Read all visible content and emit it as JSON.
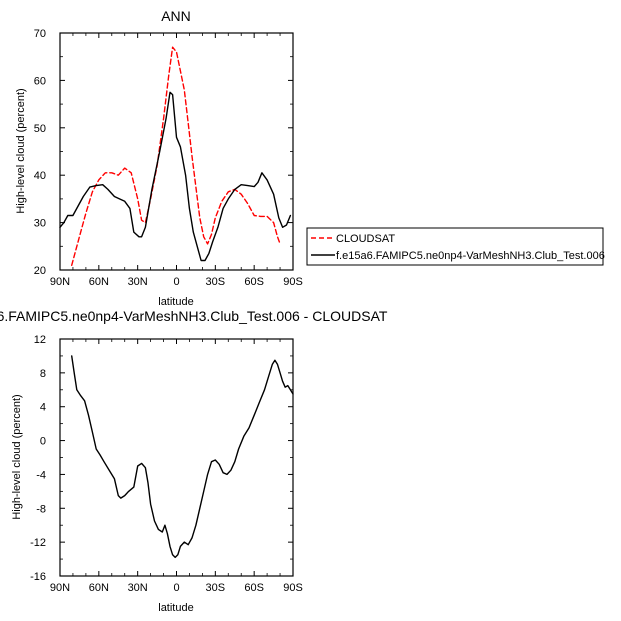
{
  "chart_data": [
    {
      "type": "line",
      "title": "ANN",
      "xlabel": "latitude",
      "ylabel": "High-level cloud (percent)",
      "xlim": [
        90,
        -90
      ],
      "ylim": [
        20,
        70
      ],
      "x_ticks": [
        90,
        60,
        30,
        0,
        -30,
        -60,
        -90
      ],
      "x_tick_labels": [
        "90N",
        "60N",
        "30N",
        "0",
        "30S",
        "60S",
        "90S"
      ],
      "y_ticks": [
        20,
        30,
        40,
        50,
        60,
        70
      ],
      "y_tick_labels": [
        "20",
        "30",
        "40",
        "50",
        "60",
        "70"
      ],
      "legend_position": "right of plot",
      "series": [
        {
          "name": "CLOUDSAT",
          "color": "#ff0000",
          "dash": "dashed",
          "points": [
            [
              81,
              21
            ],
            [
              75,
              27
            ],
            [
              70,
              32
            ],
            [
              65,
              36.5
            ],
            [
              60,
              39
            ],
            [
              55,
              40.5
            ],
            [
              50,
              40.5
            ],
            [
              45,
              40
            ],
            [
              40,
              41.5
            ],
            [
              35,
              40.5
            ],
            [
              30,
              35
            ],
            [
              27,
              30.5
            ],
            [
              24,
              30
            ],
            [
              20,
              35
            ],
            [
              15,
              42
            ],
            [
              10,
              52
            ],
            [
              6,
              61
            ],
            [
              3,
              67
            ],
            [
              0,
              66
            ],
            [
              -3,
              62
            ],
            [
              -6,
              58
            ],
            [
              -9,
              51
            ],
            [
              -12,
              44
            ],
            [
              -15,
              37.5
            ],
            [
              -18,
              31
            ],
            [
              -21,
              27
            ],
            [
              -24,
              25.5
            ],
            [
              -27,
              27.5
            ],
            [
              -30,
              31
            ],
            [
              -35,
              34.5
            ],
            [
              -40,
              36.5
            ],
            [
              -45,
              37
            ],
            [
              -50,
              36
            ],
            [
              -55,
              34
            ],
            [
              -60,
              31.5
            ],
            [
              -65,
              31.3
            ],
            [
              -70,
              31.3
            ],
            [
              -75,
              30
            ],
            [
              -78,
              27
            ],
            [
              -80,
              25.5
            ]
          ]
        },
        {
          "name": "f.e15a6.FAMIPC5.ne0np4-VarMeshNH3.Club_Test.006",
          "color": "#000000",
          "dash": "solid",
          "points": [
            [
              90,
              29
            ],
            [
              87,
              30
            ],
            [
              84,
              31.5
            ],
            [
              80,
              31.5
            ],
            [
              76,
              33.5
            ],
            [
              72,
              35.5
            ],
            [
              67,
              37.5
            ],
            [
              62,
              37.8
            ],
            [
              57,
              38
            ],
            [
              53,
              37
            ],
            [
              48,
              35.5
            ],
            [
              44,
              35
            ],
            [
              40,
              34.5
            ],
            [
              36,
              33
            ],
            [
              33,
              28
            ],
            [
              29,
              27
            ],
            [
              27,
              27
            ],
            [
              24,
              29
            ],
            [
              19,
              37
            ],
            [
              13,
              45
            ],
            [
              8,
              52
            ],
            [
              5,
              57.5
            ],
            [
              3,
              57
            ],
            [
              2,
              54
            ],
            [
              0,
              48
            ],
            [
              -3,
              46
            ],
            [
              -7,
              40
            ],
            [
              -10,
              33
            ],
            [
              -13,
              28
            ],
            [
              -16,
              25
            ],
            [
              -19,
              22
            ],
            [
              -22,
              22
            ],
            [
              -25,
              23.5
            ],
            [
              -28,
              26
            ],
            [
              -32,
              29
            ],
            [
              -36,
              33
            ],
            [
              -40,
              35
            ],
            [
              -45,
              37
            ],
            [
              -50,
              38
            ],
            [
              -55,
              37.8
            ],
            [
              -60,
              37.6
            ],
            [
              -63,
              38.5
            ],
            [
              -66,
              40.5
            ],
            [
              -70,
              39
            ],
            [
              -75,
              36
            ],
            [
              -79,
              31
            ],
            [
              -82,
              29
            ],
            [
              -85,
              29.5
            ],
            [
              -88,
              31.5
            ]
          ]
        }
      ]
    },
    {
      "type": "line",
      "title": "6.FAMIPC5.ne0np4-VarMeshNH3.Club_Test.006 - CLOUDSAT",
      "xlabel": "latitude",
      "ylabel": "High-level cloud (percent)",
      "xlim": [
        90,
        -90
      ],
      "ylim": [
        -16,
        12
      ],
      "x_ticks": [
        90,
        60,
        30,
        0,
        -30,
        -60,
        -90
      ],
      "x_tick_labels": [
        "90N",
        "60N",
        "30N",
        "0",
        "30S",
        "60S",
        "90S"
      ],
      "y_ticks": [
        -16,
        -12,
        -8,
        -4,
        0,
        4,
        8,
        12
      ],
      "y_tick_labels": [
        "-16",
        "-12",
        "-8",
        "-4",
        "0",
        "4",
        "8",
        "12"
      ],
      "series": [
        {
          "name": "",
          "color": "#000000",
          "dash": "solid",
          "points": [
            [
              81,
              10
            ],
            [
              79,
              8
            ],
            [
              77,
              6
            ],
            [
              74,
              5.3
            ],
            [
              71,
              4.7
            ],
            [
              68,
              3
            ],
            [
              65,
              1
            ],
            [
              62,
              -1
            ],
            [
              59,
              -1.7
            ],
            [
              56,
              -2.5
            ],
            [
              52,
              -3.5
            ],
            [
              48,
              -4.5
            ],
            [
              45,
              -6.5
            ],
            [
              43,
              -6.8
            ],
            [
              40,
              -6.5
            ],
            [
              37,
              -6
            ],
            [
              33,
              -5.5
            ],
            [
              30,
              -3
            ],
            [
              27,
              -2.7
            ],
            [
              24,
              -3.2
            ],
            [
              22,
              -5
            ],
            [
              20,
              -7.5
            ],
            [
              17,
              -9.5
            ],
            [
              14,
              -10.5
            ],
            [
              11,
              -10.8
            ],
            [
              9,
              -10
            ],
            [
              7,
              -11
            ],
            [
              5,
              -12.5
            ],
            [
              3,
              -13.5
            ],
            [
              1,
              -13.8
            ],
            [
              -1,
              -13.5
            ],
            [
              -3,
              -12.5
            ],
            [
              -6,
              -12
            ],
            [
              -9,
              -12.3
            ],
            [
              -12,
              -11.5
            ],
            [
              -15,
              -10
            ],
            [
              -18,
              -8
            ],
            [
              -21,
              -6
            ],
            [
              -24,
              -4
            ],
            [
              -27,
              -2.5
            ],
            [
              -30,
              -2.3
            ],
            [
              -33,
              -2.8
            ],
            [
              -36,
              -3.8
            ],
            [
              -39,
              -4
            ],
            [
              -42,
              -3.5
            ],
            [
              -45,
              -2.5
            ],
            [
              -48,
              -1
            ],
            [
              -52,
              0.5
            ],
            [
              -56,
              1.5
            ],
            [
              -60,
              3
            ],
            [
              -64,
              4.5
            ],
            [
              -68,
              6
            ],
            [
              -71,
              7.5
            ],
            [
              -74,
              9
            ],
            [
              -76,
              9.5
            ],
            [
              -78,
              9
            ],
            [
              -80,
              8
            ],
            [
              -82,
              7
            ],
            [
              -84,
              6.3
            ],
            [
              -86,
              6.5
            ],
            [
              -88,
              6
            ],
            [
              -90,
              5.5
            ]
          ]
        }
      ]
    }
  ]
}
